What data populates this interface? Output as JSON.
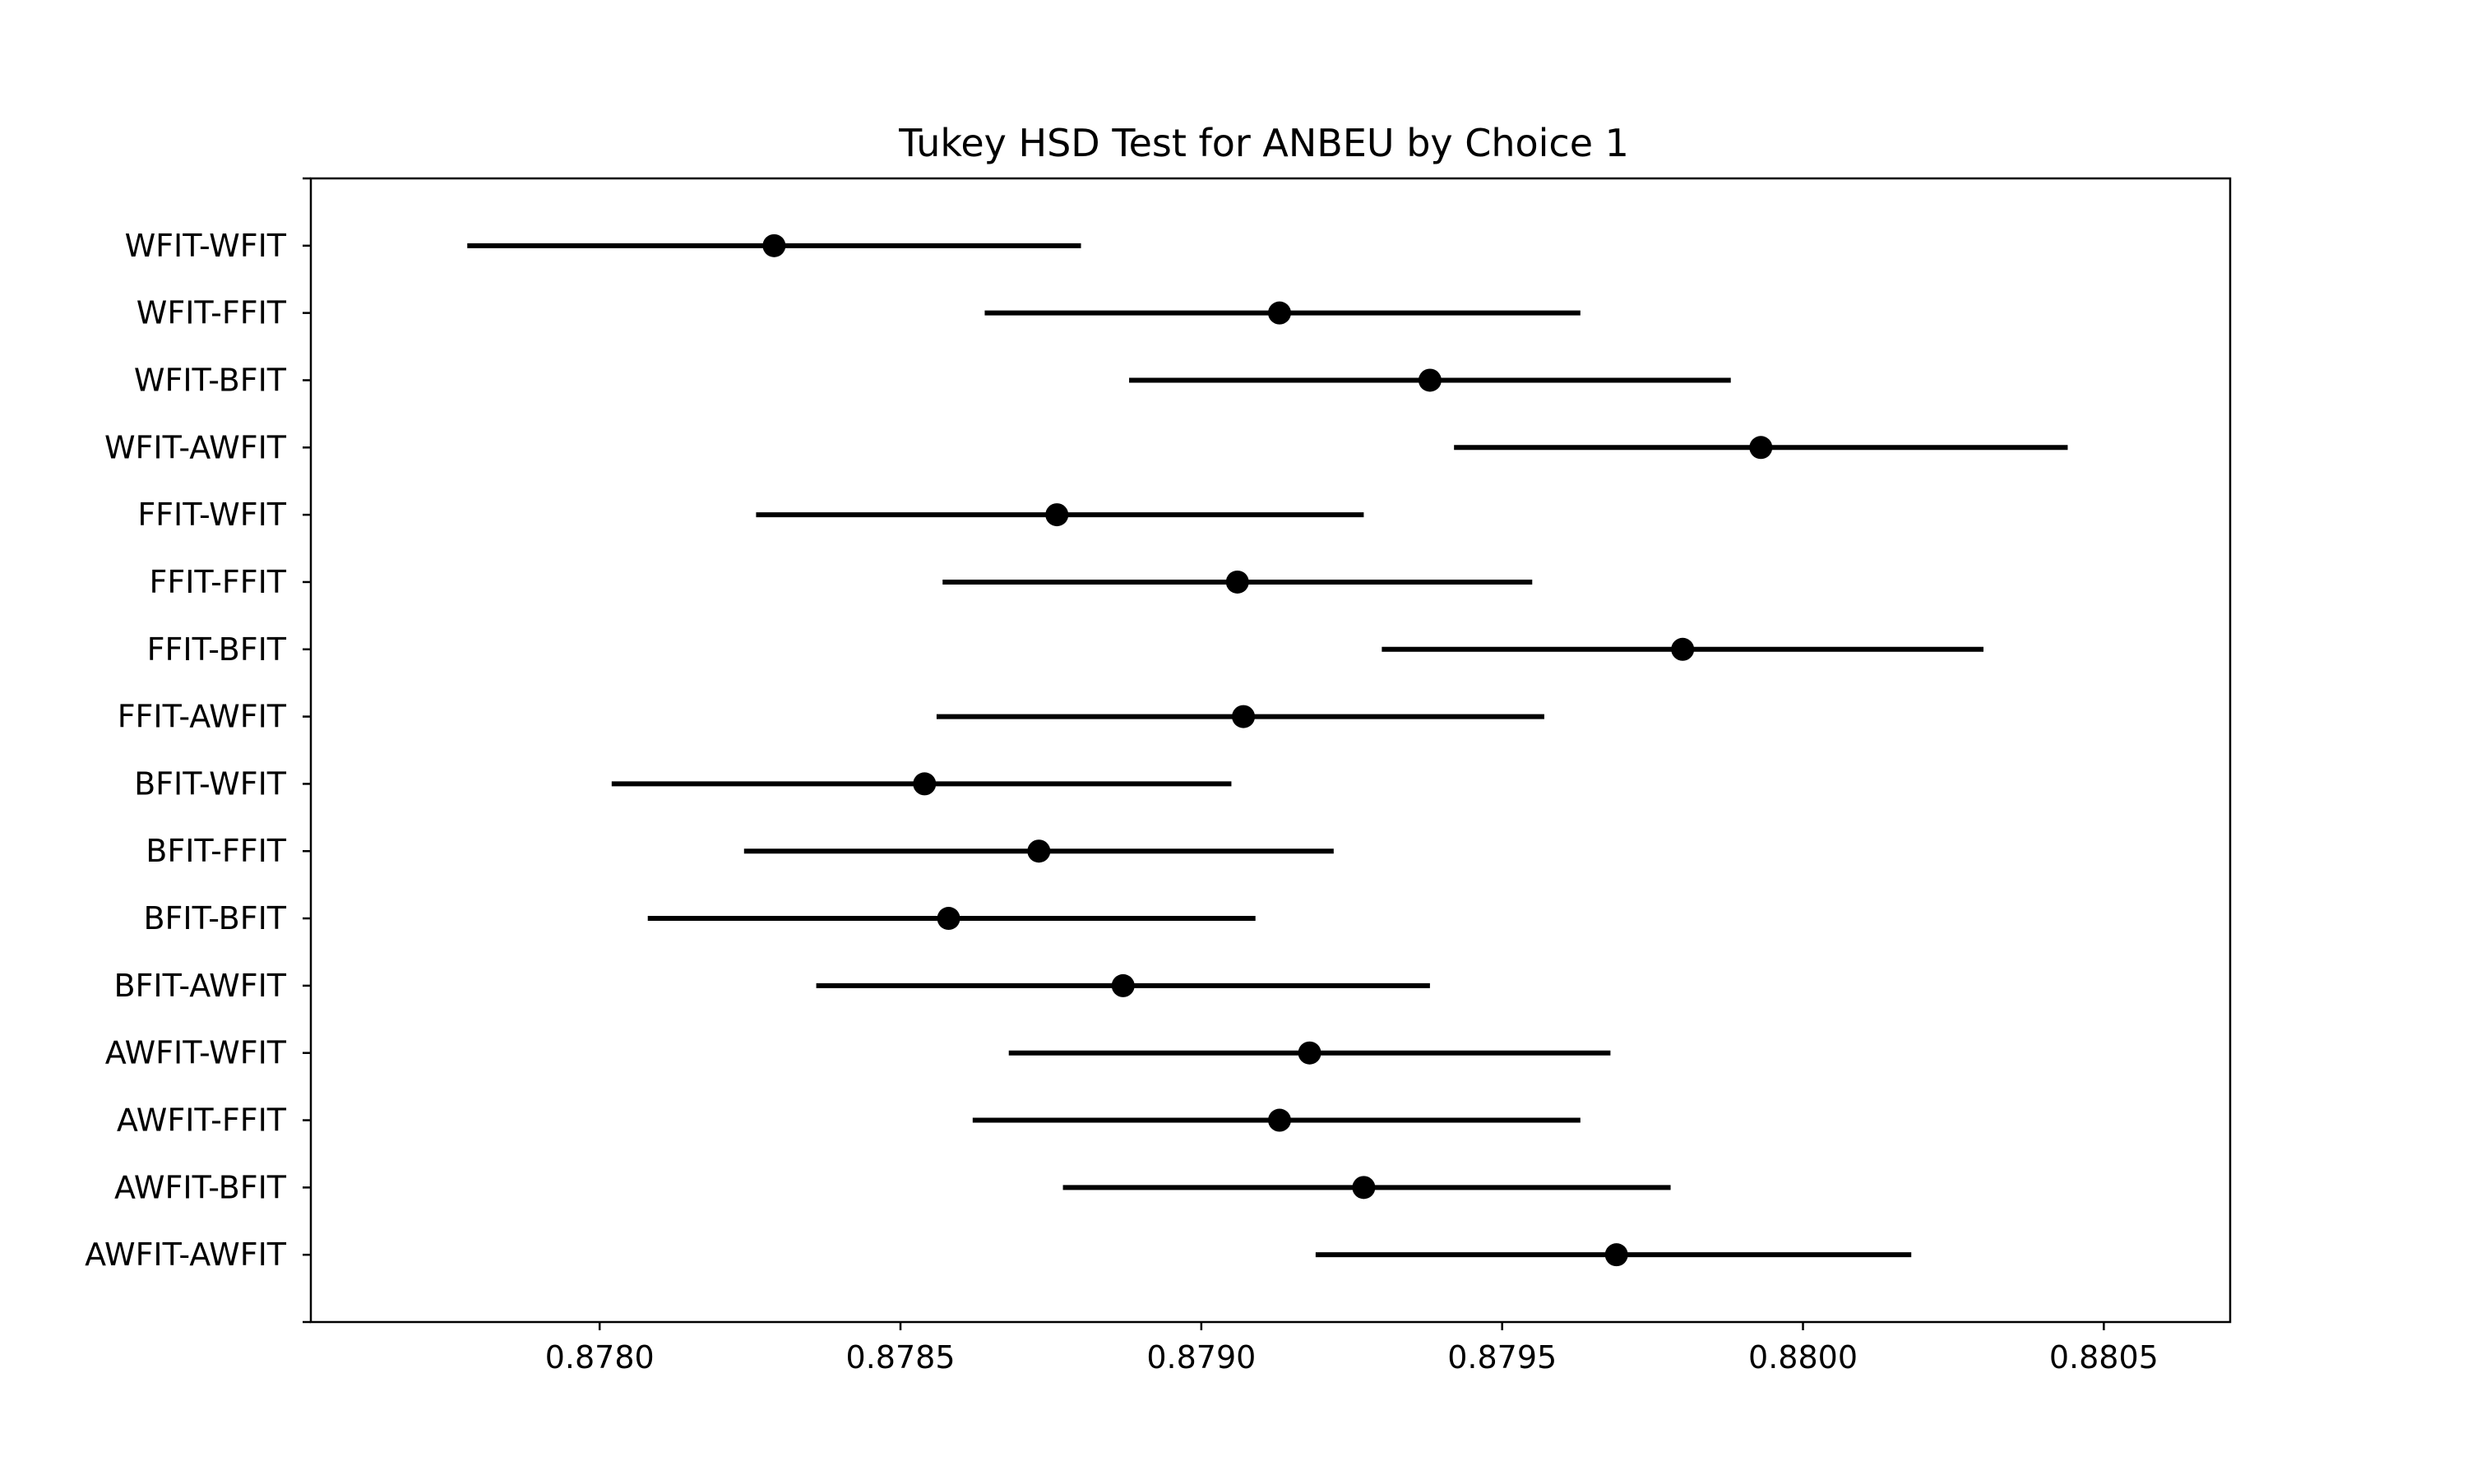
{
  "chart_data": {
    "type": "scatter",
    "subtype": "tukey-hsd-interval-plot",
    "title": "Tukey HSD Test for ANBEU by Choice 1",
    "xlabel": "",
    "ylabel": "",
    "xlim": [
      0.87752,
      0.88071
    ],
    "xticks": [
      "0.8780",
      "0.8785",
      "0.8790",
      "0.8795",
      "0.8800",
      "0.8805"
    ],
    "grid": false,
    "legend": "none",
    "marker_color": "#000000",
    "line_color": "#000000",
    "groups": [
      {
        "label": "WFIT-WFIT",
        "mean": 0.87829,
        "lower": 0.87778,
        "upper": 0.8788
      },
      {
        "label": "WFIT-FFIT",
        "mean": 0.87913,
        "lower": 0.87864,
        "upper": 0.87963
      },
      {
        "label": "WFIT-BFIT",
        "mean": 0.87938,
        "lower": 0.87888,
        "upper": 0.87988
      },
      {
        "label": "WFIT-AWFIT",
        "mean": 0.87993,
        "lower": 0.87942,
        "upper": 0.88044
      },
      {
        "label": "FFIT-WFIT",
        "mean": 0.87876,
        "lower": 0.87826,
        "upper": 0.87927
      },
      {
        "label": "FFIT-FFIT",
        "mean": 0.87906,
        "lower": 0.87857,
        "upper": 0.87955
      },
      {
        "label": "FFIT-BFIT",
        "mean": 0.8798,
        "lower": 0.8793,
        "upper": 0.8803
      },
      {
        "label": "FFIT-AWFIT",
        "mean": 0.87907,
        "lower": 0.87856,
        "upper": 0.87957
      },
      {
        "label": "BFIT-WFIT",
        "mean": 0.87854,
        "lower": 0.87802,
        "upper": 0.87905
      },
      {
        "label": "BFIT-FFIT",
        "mean": 0.87873,
        "lower": 0.87824,
        "upper": 0.87922
      },
      {
        "label": "BFIT-BFIT",
        "mean": 0.87858,
        "lower": 0.87808,
        "upper": 0.87909
      },
      {
        "label": "BFIT-AWFIT",
        "mean": 0.87887,
        "lower": 0.87836,
        "upper": 0.87938
      },
      {
        "label": "AWFIT-WFIT",
        "mean": 0.87918,
        "lower": 0.87868,
        "upper": 0.87968
      },
      {
        "label": "AWFIT-FFIT",
        "mean": 0.87913,
        "lower": 0.87862,
        "upper": 0.87963
      },
      {
        "label": "AWFIT-BFIT",
        "mean": 0.87927,
        "lower": 0.87877,
        "upper": 0.87978
      },
      {
        "label": "AWFIT-AWFIT",
        "mean": 0.87969,
        "lower": 0.87919,
        "upper": 0.88018
      }
    ]
  }
}
